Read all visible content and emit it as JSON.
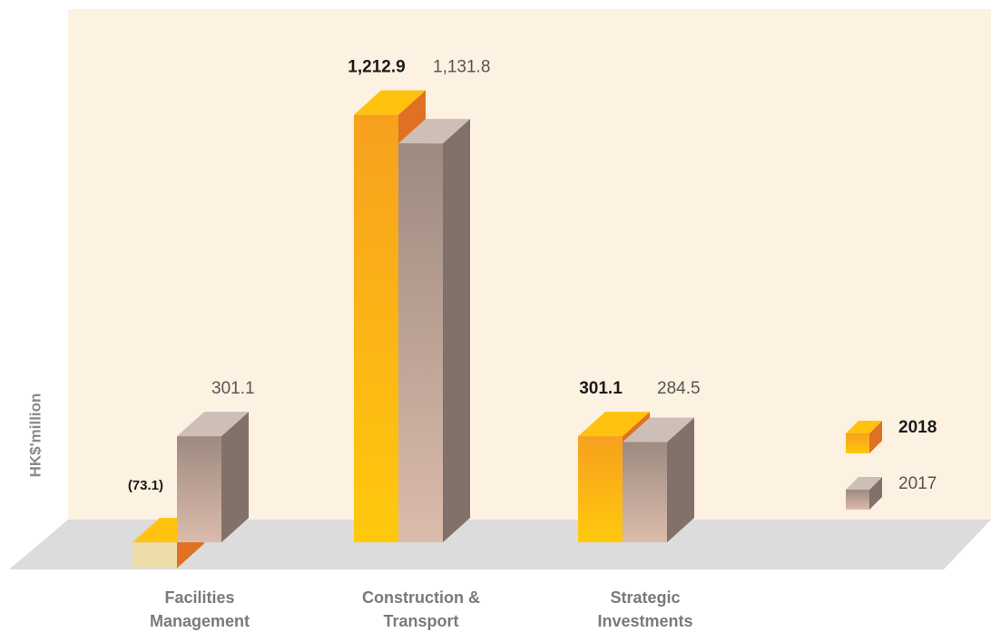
{
  "chart_data": {
    "type": "bar3d",
    "ylabel": "HK$'million",
    "categories": [
      "Facilities Management",
      "Construction & Transport",
      "Strategic Investments"
    ],
    "series": [
      {
        "name": "2018",
        "color": "#f9a61a",
        "values": [
          -73.1,
          1212.9,
          301.1
        ],
        "value_labels": [
          "(73.1)",
          "1,212.9",
          "301.1"
        ]
      },
      {
        "name": "2017",
        "color": "#a88f85",
        "values": [
          301.1,
          1131.8,
          284.5
        ],
        "value_labels": [
          "301.1",
          "1,131.8",
          "284.5"
        ]
      }
    ],
    "ylim": [
      -100,
      1500
    ],
    "legend": "right"
  }
}
